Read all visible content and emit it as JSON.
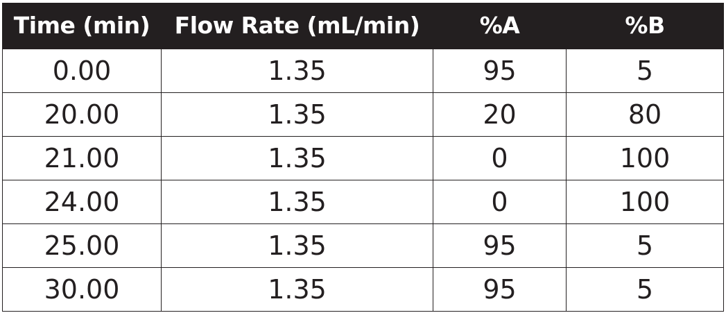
{
  "table": {
    "headers": [
      "Time (min)",
      "Flow Rate (mL/min)",
      "%A",
      "%B"
    ],
    "rows": [
      [
        "0.00",
        "1.35",
        "95",
        "5"
      ],
      [
        "20.00",
        "1.35",
        "20",
        "80"
      ],
      [
        "21.00",
        "1.35",
        "0",
        "100"
      ],
      [
        "24.00",
        "1.35",
        "0",
        "100"
      ],
      [
        "25.00",
        "1.35",
        "95",
        "5"
      ],
      [
        "30.00",
        "1.35",
        "95",
        "5"
      ]
    ]
  },
  "colors": {
    "header_background": "#231f20",
    "header_text": "#ffffff",
    "cell_text": "#231f20",
    "border": "#231f20"
  }
}
